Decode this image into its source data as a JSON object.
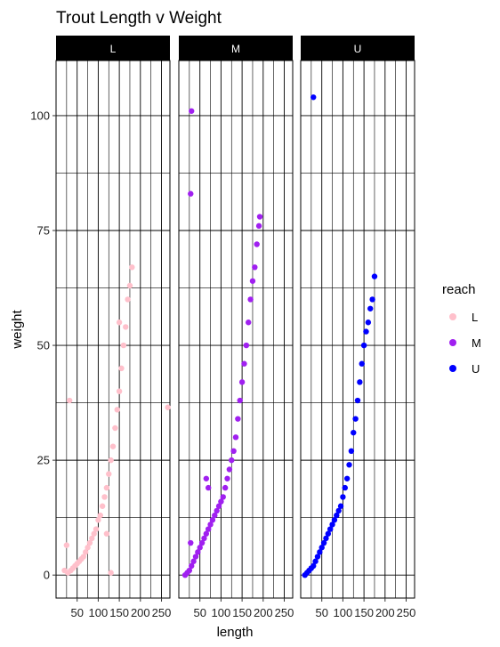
{
  "chart_data": {
    "type": "scatter",
    "title": "Trout Length v Weight",
    "xlabel": "length",
    "ylabel": "weight",
    "xlim": [
      0,
      270
    ],
    "ylim": [
      -5,
      112
    ],
    "x_ticks": [
      50,
      100,
      150,
      200,
      250
    ],
    "x_tick_labels": [
      "50",
      "100",
      "150",
      "200",
      "250"
    ],
    "y_ticks": [
      0,
      25,
      50,
      75,
      100
    ],
    "y_tick_labels": [
      "0",
      "25",
      "50",
      "75",
      "100"
    ],
    "facets": [
      "L",
      "M",
      "U"
    ],
    "legend": {
      "title": "reach",
      "position": "right"
    },
    "grid": true,
    "series": [
      {
        "name": "L",
        "color": "#FFC0CB",
        "points": [
          [
            20,
            1
          ],
          [
            25,
            6.5
          ],
          [
            28,
            0.5
          ],
          [
            32,
            38
          ],
          [
            35,
            1
          ],
          [
            40,
            1.5
          ],
          [
            45,
            2
          ],
          [
            50,
            2.5
          ],
          [
            55,
            3
          ],
          [
            60,
            3.5
          ],
          [
            65,
            4
          ],
          [
            70,
            5
          ],
          [
            75,
            6
          ],
          [
            80,
            7
          ],
          [
            85,
            8
          ],
          [
            90,
            9
          ],
          [
            95,
            10
          ],
          [
            100,
            12
          ],
          [
            105,
            13
          ],
          [
            110,
            15
          ],
          [
            115,
            17
          ],
          [
            120,
            19
          ],
          [
            125,
            22
          ],
          [
            130,
            25
          ],
          [
            135,
            28
          ],
          [
            140,
            32
          ],
          [
            145,
            36
          ],
          [
            150,
            40
          ],
          [
            155,
            45
          ],
          [
            160,
            50
          ],
          [
            165,
            54
          ],
          [
            170,
            60
          ],
          [
            175,
            63
          ],
          [
            180,
            67
          ],
          [
            130,
            0.5
          ],
          [
            120,
            9
          ],
          [
            150,
            55
          ],
          [
            265,
            36.5
          ]
        ]
      },
      {
        "name": "M",
        "color": "#A020F0",
        "points": [
          [
            15,
            0
          ],
          [
            20,
            0.5
          ],
          [
            25,
            1
          ],
          [
            30,
            2
          ],
          [
            35,
            3
          ],
          [
            40,
            4
          ],
          [
            45,
            5
          ],
          [
            50,
            6
          ],
          [
            55,
            7
          ],
          [
            60,
            8
          ],
          [
            65,
            9
          ],
          [
            70,
            10
          ],
          [
            75,
            11
          ],
          [
            80,
            12
          ],
          [
            85,
            13
          ],
          [
            90,
            14
          ],
          [
            95,
            15
          ],
          [
            100,
            16
          ],
          [
            105,
            17
          ],
          [
            110,
            19
          ],
          [
            115,
            21
          ],
          [
            120,
            23
          ],
          [
            125,
            25
          ],
          [
            130,
            27
          ],
          [
            135,
            30
          ],
          [
            140,
            34
          ],
          [
            145,
            38
          ],
          [
            150,
            42
          ],
          [
            155,
            46
          ],
          [
            160,
            50
          ],
          [
            165,
            55
          ],
          [
            170,
            60
          ],
          [
            175,
            64
          ],
          [
            180,
            67
          ],
          [
            185,
            72
          ],
          [
            190,
            76
          ],
          [
            192,
            78
          ],
          [
            30,
            101
          ],
          [
            28,
            83
          ],
          [
            28,
            7
          ],
          [
            65,
            21
          ],
          [
            70,
            19
          ]
        ]
      },
      {
        "name": "U",
        "color": "#0000FF",
        "points": [
          [
            10,
            0
          ],
          [
            15,
            0.5
          ],
          [
            20,
            1
          ],
          [
            25,
            1.5
          ],
          [
            30,
            2
          ],
          [
            35,
            3
          ],
          [
            40,
            4
          ],
          [
            45,
            5
          ],
          [
            50,
            6
          ],
          [
            55,
            7
          ],
          [
            60,
            8
          ],
          [
            65,
            9
          ],
          [
            70,
            10
          ],
          [
            75,
            11
          ],
          [
            80,
            12
          ],
          [
            85,
            13
          ],
          [
            90,
            14
          ],
          [
            95,
            15
          ],
          [
            100,
            17
          ],
          [
            105,
            19
          ],
          [
            110,
            21
          ],
          [
            115,
            24
          ],
          [
            120,
            27
          ],
          [
            125,
            31
          ],
          [
            130,
            34
          ],
          [
            135,
            38
          ],
          [
            140,
            42
          ],
          [
            145,
            46
          ],
          [
            150,
            50
          ],
          [
            155,
            53
          ],
          [
            160,
            55
          ],
          [
            165,
            58
          ],
          [
            170,
            60
          ],
          [
            175,
            65
          ],
          [
            30,
            104
          ]
        ]
      }
    ]
  }
}
